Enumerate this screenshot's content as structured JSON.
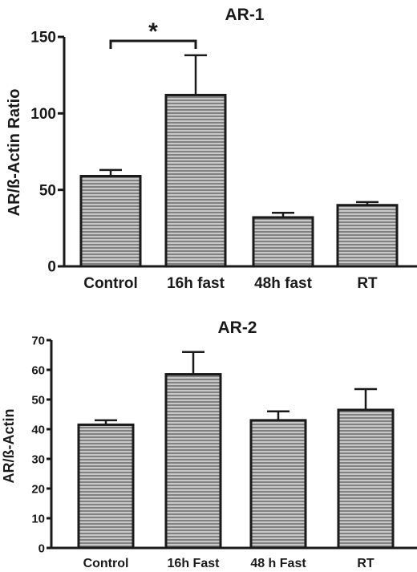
{
  "chart_data": [
    {
      "type": "bar",
      "title": "AR-1",
      "ylabel": "AR/ß-Actin Ratio",
      "xlabel": "",
      "ylim": [
        0,
        150
      ],
      "yticks": [
        0,
        50,
        100,
        150
      ],
      "categories": [
        "Control",
        "16h fast",
        "48h fast",
        "RT"
      ],
      "values": [
        59,
        112,
        32,
        40
      ],
      "errors": [
        4,
        26,
        3,
        2
      ],
      "significance": [
        {
          "from": 0,
          "to": 1,
          "label": "*"
        }
      ],
      "grid": false,
      "colors": {
        "bar_stroke": "#1a1a1a",
        "hatch": "#8a8a8a"
      }
    },
    {
      "type": "bar",
      "title": "AR-2",
      "ylabel": "AR/ß-Actin",
      "xlabel": "",
      "ylim": [
        0,
        70
      ],
      "yticks": [
        0,
        10,
        20,
        30,
        40,
        50,
        60,
        70
      ],
      "categories": [
        "Control",
        "16h Fast",
        "48 h Fast",
        "RT"
      ],
      "values": [
        41.5,
        58.5,
        43,
        46.5
      ],
      "errors": [
        1.5,
        7.5,
        3,
        7
      ],
      "significance": [],
      "grid": false,
      "colors": {
        "bar_stroke": "#1a1a1a",
        "hatch": "#8a8a8a"
      }
    }
  ]
}
